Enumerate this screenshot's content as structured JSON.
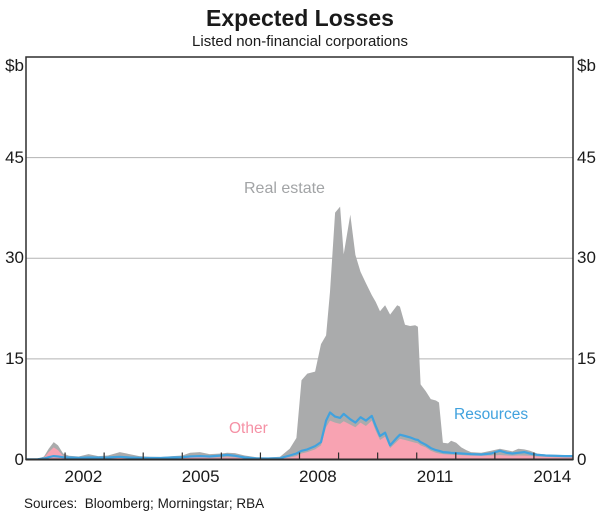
{
  "header": {
    "title": "Expected Losses",
    "subtitle": "Listed non-financial corporations"
  },
  "footer": {
    "sources": "Sources:  Bloomberg; Morningstar; RBA"
  },
  "style": {
    "grid_color": "#b3b3b3",
    "axis_color": "#2e2e2e",
    "text_color": "#1a1a1a",
    "background": "#ffffff"
  },
  "chart_data": {
    "type": "area",
    "title": "Expected Losses",
    "subtitle": "Listed non-financial corporations",
    "unit": "$b",
    "legend_position": "inline-annotations",
    "grid": "horizontal",
    "stacking_note": "Stacked area chart; values below are the visible cumulative boundaries: Other (pink fill, bottom), Resources (blue line = top of Other+Resources), Real estate (grey fill from blue line up; its values = total stack top).",
    "y_axis": {
      "range": [
        0,
        60
      ],
      "ticks": [
        0,
        15,
        30,
        45
      ],
      "gridlines": [
        15,
        30,
        45
      ],
      "unit_label": "$b"
    },
    "x_axis": {
      "range": [
        2001,
        2015
      ],
      "tick_years": [
        2002,
        2003,
        2004,
        2005,
        2006,
        2007,
        2008,
        2009,
        2010,
        2011,
        2012,
        2013,
        2014
      ],
      "labels": [
        {
          "text": "2002",
          "center": 2002.47
        },
        {
          "text": "2005",
          "center": 2005.47
        },
        {
          "text": "2008",
          "center": 2008.47
        },
        {
          "text": "2011",
          "center": 2011.47
        },
        {
          "text": "2014",
          "center": 2014.47
        }
      ]
    },
    "x": [
      2001.0,
      2001.3,
      2001.46,
      2001.58,
      2001.71,
      2001.82,
      2001.95,
      2002.1,
      2002.35,
      2002.6,
      2002.85,
      2003.1,
      2003.4,
      2003.65,
      2003.9,
      2004.15,
      2004.45,
      2004.75,
      2005.0,
      2005.2,
      2005.45,
      2005.7,
      2006.0,
      2006.15,
      2006.35,
      2006.6,
      2006.9,
      2007.2,
      2007.5,
      2007.75,
      2007.92,
      2008.05,
      2008.2,
      2008.4,
      2008.55,
      2008.68,
      2008.78,
      2008.91,
      2009.04,
      2009.13,
      2009.3,
      2009.43,
      2009.56,
      2009.7,
      2009.85,
      2009.95,
      2010.06,
      2010.19,
      2010.32,
      2010.5,
      2010.57,
      2010.7,
      2010.83,
      2010.96,
      2011.03,
      2011.1,
      2011.23,
      2011.36,
      2011.49,
      2011.57,
      2011.67,
      2011.8,
      2011.88,
      2012.01,
      2012.14,
      2012.27,
      2012.39,
      2012.65,
      2012.9,
      2013.13,
      2013.3,
      2013.45,
      2013.6,
      2013.75,
      2013.9,
      2014.08,
      2014.3,
      2014.55,
      2014.8,
      2015.0
    ],
    "series": [
      {
        "name": "Real estate",
        "style": "area",
        "color": "#aaabac",
        "label_color": "#a2a4a6",
        "boundary": "total stack top",
        "values": [
          0.05,
          0.12,
          0.45,
          1.6,
          2.6,
          2.1,
          0.9,
          0.55,
          0.45,
          0.8,
          0.5,
          0.6,
          1.1,
          0.8,
          0.5,
          0.4,
          0.38,
          0.5,
          0.6,
          1.0,
          1.1,
          0.8,
          0.9,
          1.0,
          0.95,
          0.6,
          0.35,
          0.3,
          0.4,
          1.6,
          3.2,
          11.8,
          12.8,
          13.1,
          17.2,
          18.5,
          25.0,
          36.8,
          37.7,
          30.6,
          36.5,
          30.5,
          28.0,
          26.3,
          24.5,
          23.5,
          22.1,
          23.0,
          21.6,
          23.0,
          22.8,
          20.1,
          19.9,
          20.0,
          19.8,
          11.2,
          10.2,
          9.0,
          8.8,
          8.5,
          2.5,
          2.4,
          2.8,
          2.5,
          1.8,
          1.4,
          1.1,
          1.0,
          1.3,
          1.6,
          1.4,
          1.2,
          1.6,
          1.5,
          1.3,
          0.9,
          0.75,
          0.7,
          0.65,
          0.6
        ]
      },
      {
        "name": "Other",
        "style": "area",
        "color": "#f8a3b2",
        "label_color": "#f591a5",
        "boundary": "bottom band top",
        "values": [
          0.02,
          0.04,
          0.25,
          1.1,
          1.8,
          1.4,
          0.5,
          0.2,
          0.15,
          0.3,
          0.2,
          0.25,
          0.4,
          0.3,
          0.18,
          0.12,
          0.12,
          0.18,
          0.2,
          0.3,
          0.35,
          0.25,
          0.3,
          0.35,
          0.3,
          0.2,
          0.1,
          0.1,
          0.15,
          0.3,
          0.5,
          0.9,
          1.1,
          1.5,
          2.1,
          4.8,
          5.8,
          5.5,
          5.3,
          5.7,
          5.2,
          4.8,
          5.5,
          5.0,
          5.8,
          4.3,
          2.9,
          3.4,
          1.7,
          2.7,
          3.1,
          2.9,
          2.7,
          2.5,
          2.4,
          2.1,
          1.8,
          1.3,
          1.0,
          0.9,
          0.8,
          0.75,
          0.7,
          0.68,
          0.65,
          0.6,
          0.58,
          0.55,
          0.6,
          0.65,
          0.6,
          0.55,
          0.6,
          0.58,
          0.55,
          0.45,
          0.4,
          0.35,
          0.32,
          0.3
        ]
      },
      {
        "name": "Resources",
        "style": "line",
        "color": "#41a2de",
        "label_color": "#41a2de",
        "boundary": "top of Other + Resources",
        "values": [
          0.02,
          0.05,
          0.15,
          0.35,
          0.5,
          0.45,
          0.35,
          0.3,
          0.25,
          0.3,
          0.28,
          0.3,
          0.4,
          0.3,
          0.25,
          0.22,
          0.22,
          0.3,
          0.35,
          0.45,
          0.5,
          0.45,
          0.6,
          0.7,
          0.55,
          0.3,
          0.15,
          0.15,
          0.2,
          0.6,
          0.9,
          1.3,
          1.5,
          2.0,
          2.6,
          5.8,
          7.0,
          6.4,
          6.2,
          6.8,
          6.0,
          5.5,
          6.3,
          5.8,
          6.5,
          5.0,
          3.5,
          4.0,
          2.1,
          3.3,
          3.7,
          3.5,
          3.3,
          3.0,
          2.9,
          2.6,
          2.2,
          1.7,
          1.4,
          1.3,
          1.1,
          1.05,
          1.0,
          0.95,
          0.9,
          0.85,
          0.8,
          0.75,
          0.9,
          1.3,
          1.0,
          0.9,
          1.0,
          1.1,
          0.9,
          0.7,
          0.6,
          0.55,
          0.5,
          0.5
        ]
      }
    ]
  }
}
